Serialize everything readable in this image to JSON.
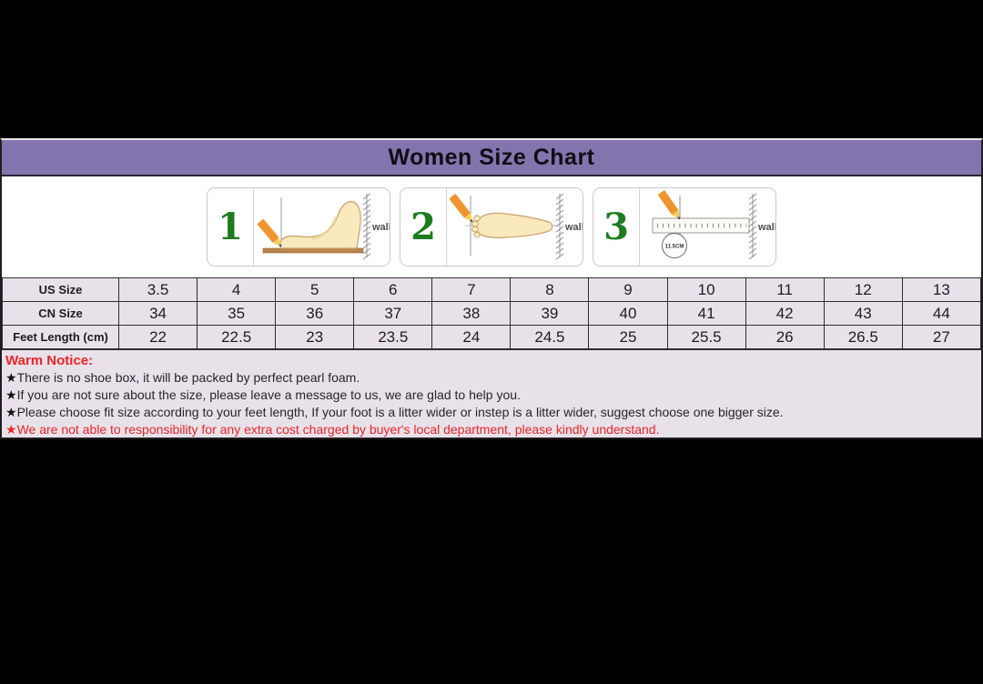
{
  "header": {
    "title": "Women Size Chart"
  },
  "measure_panels": [
    {
      "number": "1",
      "wall_label": "wall"
    },
    {
      "number": "2",
      "wall_label": "wall"
    },
    {
      "number": "3",
      "wall_label": "wall",
      "circle_label": "11.5CM"
    }
  ],
  "size_table": {
    "rows": [
      {
        "label": "US Size",
        "values": [
          "3.5",
          "4",
          "5",
          "6",
          "7",
          "8",
          "9",
          "10",
          "11",
          "12",
          "13"
        ]
      },
      {
        "label": "CN Size",
        "values": [
          "34",
          "35",
          "36",
          "37",
          "38",
          "39",
          "40",
          "41",
          "42",
          "43",
          "44"
        ]
      },
      {
        "label": "Feet Length (cm)",
        "values": [
          "22",
          "22.5",
          "23",
          "23.5",
          "24",
          "24.5",
          "25",
          "25.5",
          "26",
          "26.5",
          "27"
        ]
      }
    ]
  },
  "warm_notice": {
    "title": "Warm Notice:",
    "items": [
      {
        "bullet": "★",
        "text": "There is no shoe box, it will be packed by perfect pearl foam.",
        "style": "dark"
      },
      {
        "bullet": "★",
        "text": "If you are not sure about the size, please leave a message to us, we are glad to help you.",
        "style": "dark"
      },
      {
        "bullet": "★",
        "text": "Please choose fit size according to your feet length, If your foot is a litter wider or instep is a litter wider, suggest choose one bigger size.",
        "style": "dark"
      },
      {
        "bullet": "★",
        "text": "We are not able to responsibility for any extra cost charged by buyer's local department, please kindly understand.",
        "style": "red"
      }
    ]
  },
  "colors": {
    "header-bg": "#8474ae",
    "lavender-bg": "#e8e1ea",
    "warm-red": "#e92525",
    "step-green": "#1e7c1e",
    "pencil-orange": "#ef952f",
    "foot-fill": "#f9e9bd",
    "foot-outline": "#c8a06a",
    "board-brown": "#b9854d"
  }
}
